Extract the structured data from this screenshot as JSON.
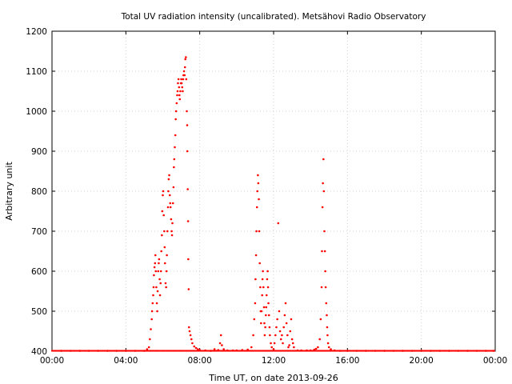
{
  "chart_data": {
    "type": "scatter",
    "title": "Total UV radiation intensity (uncalibrated). Metsähovi Radio Observatory",
    "xlabel": "Time UT, on date 2013-09-26",
    "ylabel": "Arbitrary unit",
    "xlim_hours": [
      0,
      24
    ],
    "ylim": [
      400,
      1200
    ],
    "x_ticks": [
      {
        "hour": 0,
        "label": "00:00"
      },
      {
        "hour": 4,
        "label": "04:00"
      },
      {
        "hour": 8,
        "label": "08:00"
      },
      {
        "hour": 12,
        "label": "12:00"
      },
      {
        "hour": 16,
        "label": "16:00"
      },
      {
        "hour": 20,
        "label": "20:00"
      },
      {
        "hour": 24,
        "label": "00:00"
      }
    ],
    "y_ticks": [
      400,
      500,
      600,
      700,
      800,
      900,
      1000,
      1100,
      1200
    ],
    "grid": true,
    "marker_color": "#ff0000",
    "grid_color": "#c8c8c8",
    "series": [
      {
        "points": [
          [
            0.5,
            401
          ],
          [
            1.0,
            401
          ],
          [
            1.5,
            401
          ],
          [
            2.0,
            401
          ],
          [
            2.5,
            401
          ],
          [
            3.0,
            401
          ],
          [
            3.5,
            401
          ],
          [
            4.0,
            401
          ],
          [
            4.5,
            401
          ],
          [
            5.0,
            401
          ],
          [
            5.15,
            405
          ],
          [
            5.25,
            410
          ],
          [
            5.3,
            430
          ],
          [
            5.35,
            455
          ],
          [
            5.4,
            480
          ],
          [
            5.42,
            500
          ],
          [
            5.45,
            520
          ],
          [
            5.48,
            540
          ],
          [
            5.5,
            560
          ],
          [
            5.52,
            590
          ],
          [
            5.55,
            610
          ],
          [
            5.58,
            620
          ],
          [
            5.6,
            640
          ],
          [
            5.62,
            600
          ],
          [
            5.65,
            560
          ],
          [
            5.68,
            520
          ],
          [
            5.7,
            500
          ],
          [
            5.72,
            550
          ],
          [
            5.75,
            600
          ],
          [
            5.78,
            620
          ],
          [
            5.8,
            630
          ],
          [
            5.83,
            580
          ],
          [
            5.85,
            540
          ],
          [
            5.88,
            570
          ],
          [
            5.9,
            600
          ],
          [
            5.92,
            650
          ],
          [
            5.95,
            690
          ],
          [
            5.97,
            750
          ],
          [
            6.0,
            790
          ],
          [
            6.02,
            800
          ],
          [
            6.05,
            740
          ],
          [
            6.08,
            700
          ],
          [
            6.1,
            660
          ],
          [
            6.12,
            620
          ],
          [
            6.15,
            570
          ],
          [
            6.18,
            560
          ],
          [
            6.2,
            600
          ],
          [
            6.22,
            640
          ],
          [
            6.25,
            700
          ],
          [
            6.28,
            760
          ],
          [
            6.3,
            800
          ],
          [
            6.32,
            830
          ],
          [
            6.35,
            840
          ],
          [
            6.38,
            790
          ],
          [
            6.4,
            770
          ],
          [
            6.42,
            760
          ],
          [
            6.45,
            730
          ],
          [
            6.48,
            700
          ],
          [
            6.5,
            690
          ],
          [
            6.52,
            720
          ],
          [
            6.55,
            770
          ],
          [
            6.58,
            810
          ],
          [
            6.6,
            860
          ],
          [
            6.62,
            880
          ],
          [
            6.65,
            910
          ],
          [
            6.68,
            940
          ],
          [
            6.7,
            980
          ],
          [
            6.72,
            1000
          ],
          [
            6.75,
            1020
          ],
          [
            6.78,
            1040
          ],
          [
            6.8,
            1050
          ],
          [
            6.82,
            1070
          ],
          [
            6.85,
            1080
          ],
          [
            6.88,
            1060
          ],
          [
            6.9,
            1040
          ],
          [
            6.92,
            1030
          ],
          [
            6.95,
            1050
          ],
          [
            6.98,
            1070
          ],
          [
            7.0,
            1080
          ],
          [
            7.02,
            1070
          ],
          [
            7.05,
            1060
          ],
          [
            7.08,
            1050
          ],
          [
            7.1,
            1080
          ],
          [
            7.12,
            1090
          ],
          [
            7.15,
            1100
          ],
          [
            7.18,
            1090
          ],
          [
            7.2,
            1110
          ],
          [
            7.22,
            1130
          ],
          [
            7.25,
            1135
          ],
          [
            7.27,
            1080
          ],
          [
            7.3,
            1000
          ],
          [
            7.32,
            965
          ],
          [
            7.33,
            900
          ],
          [
            7.35,
            805
          ],
          [
            7.37,
            725
          ],
          [
            7.38,
            630
          ],
          [
            7.4,
            555
          ],
          [
            7.42,
            460
          ],
          [
            7.45,
            450
          ],
          [
            7.5,
            440
          ],
          [
            7.55,
            430
          ],
          [
            7.6,
            420
          ],
          [
            7.7,
            412
          ],
          [
            7.8,
            408
          ],
          [
            7.9,
            405
          ],
          [
            8.0,
            403
          ],
          [
            8.3,
            402
          ],
          [
            8.6,
            401
          ],
          [
            8.8,
            405
          ],
          [
            9.0,
            403
          ],
          [
            9.1,
            420
          ],
          [
            9.15,
            440
          ],
          [
            9.2,
            415
          ],
          [
            9.3,
            405
          ],
          [
            9.5,
            402
          ],
          [
            9.8,
            402
          ],
          [
            10.0,
            402
          ],
          [
            10.3,
            403
          ],
          [
            10.6,
            404
          ],
          [
            10.8,
            410
          ],
          [
            10.9,
            440
          ],
          [
            10.95,
            480
          ],
          [
            11.0,
            520
          ],
          [
            11.02,
            580
          ],
          [
            11.05,
            640
          ],
          [
            11.07,
            700
          ],
          [
            11.1,
            760
          ],
          [
            11.12,
            800
          ],
          [
            11.15,
            840
          ],
          [
            11.17,
            820
          ],
          [
            11.2,
            780
          ],
          [
            11.22,
            700
          ],
          [
            11.25,
            620
          ],
          [
            11.28,
            560
          ],
          [
            11.3,
            500
          ],
          [
            11.32,
            470
          ],
          [
            11.35,
            500
          ],
          [
            11.38,
            540
          ],
          [
            11.4,
            580
          ],
          [
            11.42,
            600
          ],
          [
            11.45,
            560
          ],
          [
            11.48,
            510
          ],
          [
            11.5,
            470
          ],
          [
            11.52,
            440
          ],
          [
            11.55,
            460
          ],
          [
            11.58,
            490
          ],
          [
            11.6,
            510
          ],
          [
            11.62,
            540
          ],
          [
            11.65,
            580
          ],
          [
            11.68,
            600
          ],
          [
            11.7,
            560
          ],
          [
            11.72,
            520
          ],
          [
            11.75,
            490
          ],
          [
            11.78,
            460
          ],
          [
            11.8,
            440
          ],
          [
            11.85,
            420
          ],
          [
            11.9,
            410
          ],
          [
            12.0,
            405
          ],
          [
            12.05,
            420
          ],
          [
            12.1,
            440
          ],
          [
            12.15,
            460
          ],
          [
            12.2,
            480
          ],
          [
            12.25,
            720
          ],
          [
            12.3,
            500
          ],
          [
            12.35,
            450
          ],
          [
            12.4,
            430
          ],
          [
            12.45,
            440
          ],
          [
            12.5,
            420
          ],
          [
            12.55,
            460
          ],
          [
            12.6,
            490
          ],
          [
            12.65,
            520
          ],
          [
            12.7,
            470
          ],
          [
            12.75,
            440
          ],
          [
            12.8,
            410
          ],
          [
            12.85,
            415
          ],
          [
            12.9,
            450
          ],
          [
            12.95,
            480
          ],
          [
            13.0,
            430
          ],
          [
            13.05,
            420
          ],
          [
            13.1,
            410
          ],
          [
            13.3,
            402
          ],
          [
            13.5,
            402
          ],
          [
            13.8,
            402
          ],
          [
            14.0,
            402
          ],
          [
            14.2,
            404
          ],
          [
            14.3,
            406
          ],
          [
            14.4,
            410
          ],
          [
            14.5,
            430
          ],
          [
            14.55,
            480
          ],
          [
            14.6,
            560
          ],
          [
            14.62,
            650
          ],
          [
            14.65,
            760
          ],
          [
            14.67,
            820
          ],
          [
            14.7,
            880
          ],
          [
            14.72,
            800
          ],
          [
            14.75,
            700
          ],
          [
            14.78,
            650
          ],
          [
            14.8,
            600
          ],
          [
            14.82,
            560
          ],
          [
            14.85,
            520
          ],
          [
            14.88,
            490
          ],
          [
            14.9,
            460
          ],
          [
            14.92,
            440
          ],
          [
            14.95,
            420
          ],
          [
            15.0,
            410
          ],
          [
            15.1,
            405
          ],
          [
            15.3,
            402
          ],
          [
            15.6,
            401
          ],
          [
            16.0,
            401
          ],
          [
            16.5,
            401
          ],
          [
            17.0,
            401
          ],
          [
            17.5,
            401
          ],
          [
            18.0,
            401
          ],
          [
            18.5,
            401
          ],
          [
            19.0,
            401
          ],
          [
            19.5,
            401
          ],
          [
            20.0,
            401
          ],
          [
            20.5,
            401
          ],
          [
            21.0,
            401
          ],
          [
            21.5,
            401
          ],
          [
            22.0,
            401
          ],
          [
            22.5,
            401
          ],
          [
            23.0,
            401
          ],
          [
            23.5,
            401
          ],
          [
            23.9,
            401
          ]
        ]
      }
    ]
  }
}
